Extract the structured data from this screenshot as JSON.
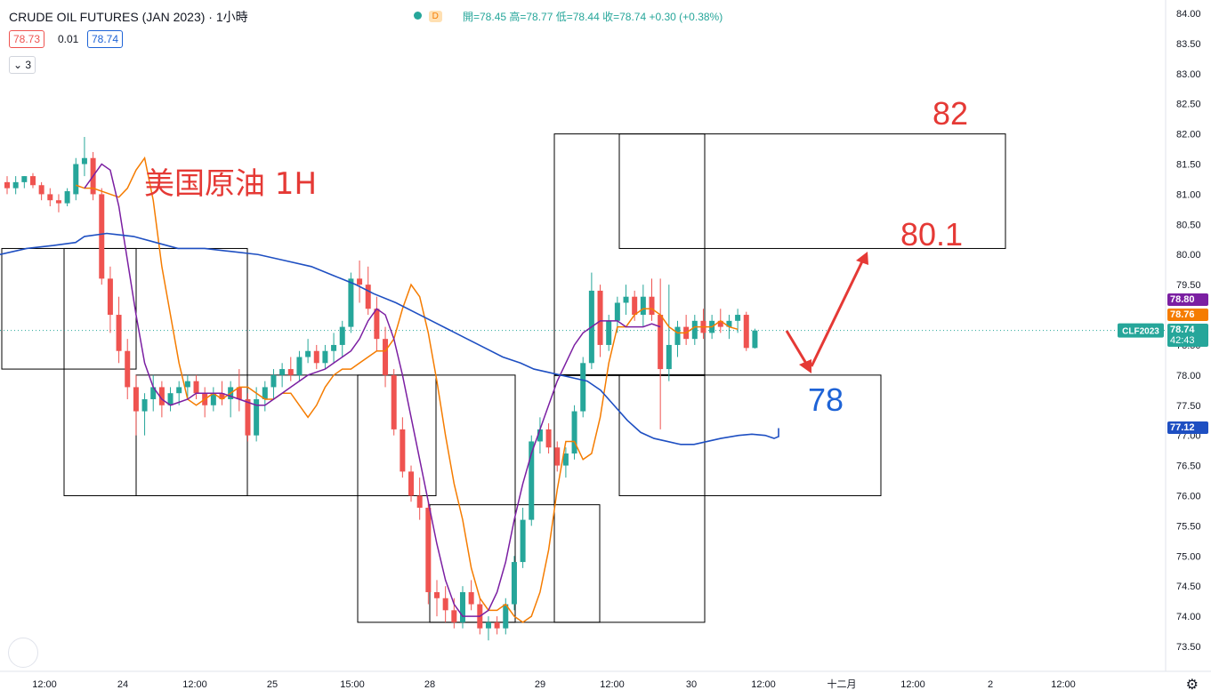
{
  "header": {
    "symbol_title": "CRUDE OIL FUTURES (JAN 2023) · 1小時",
    "status_icon_letter": "D",
    "ohlc": "開=78.45  高=78.77  低=78.44  收=78.74  +0.30 (+0.38%)",
    "bid": "78.73",
    "spread": "0.01",
    "ask": "78.74",
    "indicator_count": "3"
  },
  "colors": {
    "up": "#26a69a",
    "down": "#ef5350",
    "ma_fast": "#f57c00",
    "ma_mid": "#7b1fa2",
    "ma_slow": "#1e4fc2",
    "annotation_red": "#e53935",
    "annotation_blue": "#1e63d6"
  },
  "chart_data": {
    "type": "candlestick",
    "title": "美国原油 1H",
    "ylim": [
      73.2,
      84.1
    ],
    "y_ticks": [
      "84.00",
      "83.50",
      "83.00",
      "82.50",
      "82.00",
      "81.50",
      "81.00",
      "80.50",
      "80.00",
      "79.50",
      "79.00",
      "78.50",
      "78.00",
      "77.50",
      "77.00",
      "76.50",
      "76.00",
      "75.50",
      "75.00",
      "74.50",
      "74.00",
      "73.50"
    ],
    "x_ticks": [
      "12:00",
      "24",
      "12:00",
      "25",
      "15:00",
      "28",
      "29",
      "12:00",
      "30",
      "12:00",
      "十二月",
      "12:00",
      "2",
      "12:00"
    ],
    "last_price": 78.74,
    "price_labels": [
      {
        "label": "78.80",
        "value": 78.8,
        "color": "#7b1fa2"
      },
      {
        "label": "78.76",
        "value": 78.76,
        "color": "#f57c00"
      },
      {
        "label": "78.74",
        "sub": "42:43",
        "value": 78.74,
        "color": "#26a69a"
      },
      {
        "label": "77.12",
        "value": 77.12,
        "color": "#1e4fc2"
      }
    ],
    "symbol_tag": "CLF2023",
    "candles": [
      [
        81.2,
        81.3,
        81.0,
        81.1
      ],
      [
        81.1,
        81.3,
        81.0,
        81.2
      ],
      [
        81.2,
        81.3,
        81.1,
        81.3
      ],
      [
        81.3,
        81.35,
        81.1,
        81.15
      ],
      [
        81.15,
        81.2,
        80.9,
        81.0
      ],
      [
        81.0,
        81.1,
        80.8,
        80.9
      ],
      [
        80.9,
        81.0,
        80.7,
        80.85
      ],
      [
        80.85,
        81.1,
        80.8,
        81.05
      ],
      [
        81.0,
        81.6,
        80.9,
        81.5
      ],
      [
        81.5,
        81.95,
        81.3,
        81.6
      ],
      [
        81.6,
        81.7,
        80.9,
        81.0
      ],
      [
        81.0,
        81.1,
        79.5,
        79.6
      ],
      [
        79.6,
        79.8,
        78.7,
        79.0
      ],
      [
        79.0,
        79.3,
        78.2,
        78.4
      ],
      [
        78.4,
        78.6,
        77.6,
        77.8
      ],
      [
        77.8,
        78.0,
        77.0,
        77.4
      ],
      [
        77.4,
        77.7,
        77.0,
        77.6
      ],
      [
        77.6,
        78.0,
        77.4,
        77.8
      ],
      [
        77.8,
        77.9,
        77.3,
        77.5
      ],
      [
        77.5,
        77.8,
        77.4,
        77.7
      ],
      [
        77.7,
        77.9,
        77.5,
        77.8
      ],
      [
        77.8,
        78.0,
        77.6,
        77.9
      ],
      [
        77.9,
        78.0,
        77.6,
        77.7
      ],
      [
        77.7,
        77.8,
        77.3,
        77.5
      ],
      [
        77.5,
        77.8,
        77.4,
        77.7
      ],
      [
        77.7,
        77.9,
        77.5,
        77.6
      ],
      [
        77.6,
        77.9,
        77.3,
        77.8
      ],
      [
        77.8,
        78.1,
        77.4,
        77.6
      ],
      [
        77.6,
        77.7,
        76.9,
        77.0
      ],
      [
        77.0,
        77.8,
        76.9,
        77.6
      ],
      [
        77.6,
        77.9,
        77.4,
        77.8
      ],
      [
        77.8,
        78.1,
        77.6,
        78.0
      ],
      [
        78.0,
        78.2,
        77.8,
        78.1
      ],
      [
        78.1,
        78.3,
        77.9,
        78.0
      ],
      [
        78.0,
        78.4,
        77.9,
        78.3
      ],
      [
        78.3,
        78.6,
        78.2,
        78.4
      ],
      [
        78.4,
        78.5,
        78.1,
        78.2
      ],
      [
        78.2,
        78.5,
        78.1,
        78.4
      ],
      [
        78.4,
        78.7,
        78.2,
        78.5
      ],
      [
        78.5,
        78.9,
        78.3,
        78.8
      ],
      [
        78.8,
        79.7,
        78.7,
        79.6
      ],
      [
        79.6,
        79.9,
        79.2,
        79.5
      ],
      [
        79.5,
        79.8,
        79.0,
        79.1
      ],
      [
        79.1,
        79.3,
        78.4,
        78.6
      ],
      [
        78.6,
        78.8,
        77.8,
        78.0
      ],
      [
        78.0,
        78.1,
        77.0,
        77.1
      ],
      [
        77.1,
        77.3,
        76.3,
        76.4
      ],
      [
        76.4,
        76.5,
        75.9,
        76.0
      ],
      [
        76.0,
        76.3,
        75.6,
        75.8
      ],
      [
        75.8,
        75.9,
        74.2,
        74.4
      ],
      [
        74.4,
        74.6,
        74.0,
        74.3
      ],
      [
        74.3,
        74.5,
        73.9,
        74.1
      ],
      [
        74.1,
        74.3,
        73.8,
        73.9
      ],
      [
        73.9,
        74.5,
        73.8,
        74.4
      ],
      [
        74.4,
        74.6,
        74.1,
        74.2
      ],
      [
        74.2,
        74.3,
        73.7,
        73.8
      ],
      [
        73.8,
        74.0,
        73.6,
        73.9
      ],
      [
        73.9,
        74.0,
        73.7,
        73.8
      ],
      [
        73.8,
        74.3,
        73.7,
        74.2
      ],
      [
        74.2,
        75.0,
        74.1,
        74.9
      ],
      [
        74.9,
        75.8,
        74.8,
        75.6
      ],
      [
        75.6,
        77.0,
        75.5,
        76.9
      ],
      [
        76.9,
        77.3,
        76.7,
        77.1
      ],
      [
        77.1,
        77.2,
        76.7,
        76.8
      ],
      [
        76.8,
        76.9,
        76.4,
        76.5
      ],
      [
        76.5,
        76.8,
        76.3,
        76.7
      ],
      [
        76.7,
        77.5,
        76.6,
        77.4
      ],
      [
        77.4,
        78.3,
        77.3,
        78.2
      ],
      [
        78.2,
        79.7,
        78.1,
        79.4
      ],
      [
        79.4,
        79.5,
        78.3,
        78.5
      ],
      [
        78.5,
        79.0,
        78.4,
        78.9
      ],
      [
        78.9,
        79.3,
        78.7,
        79.2
      ],
      [
        79.2,
        79.5,
        79.0,
        79.3
      ],
      [
        79.3,
        79.4,
        78.9,
        79.0
      ],
      [
        79.0,
        79.5,
        78.8,
        79.3
      ],
      [
        79.3,
        79.6,
        78.9,
        79.0
      ],
      [
        79.0,
        79.6,
        77.1,
        78.1
      ],
      [
        78.1,
        79.5,
        77.9,
        78.5
      ],
      [
        78.5,
        78.9,
        78.3,
        78.8
      ],
      [
        78.8,
        79.0,
        78.5,
        78.6
      ],
      [
        78.6,
        79.0,
        78.5,
        78.9
      ],
      [
        78.9,
        79.1,
        78.6,
        78.7
      ],
      [
        78.7,
        79.0,
        78.6,
        78.9
      ],
      [
        78.9,
        79.1,
        78.7,
        78.8
      ],
      [
        78.8,
        79.0,
        78.6,
        78.9
      ],
      [
        78.9,
        79.1,
        78.7,
        79.0
      ],
      [
        79.0,
        79.05,
        78.4,
        78.45
      ],
      [
        78.45,
        78.77,
        78.44,
        78.74
      ]
    ],
    "ma_fast": [
      81.15,
      81.1,
      81.1,
      81.05,
      81.0,
      80.95,
      81.1,
      81.4,
      81.6,
      80.9,
      79.8,
      79.0,
      78.2,
      77.6,
      77.5,
      77.6,
      77.7,
      77.6,
      77.7,
      77.8,
      77.8,
      77.7,
      77.6,
      77.6,
      77.7,
      77.7,
      77.5,
      77.3,
      77.5,
      77.8,
      78.0,
      78.1,
      78.1,
      78.2,
      78.3,
      78.4,
      78.4,
      78.6,
      79.1,
      79.5,
      79.3,
      78.7,
      77.9,
      77.0,
      76.2,
      75.6,
      74.8,
      74.3,
      74.1,
      74.1,
      74.2,
      74.0,
      73.9,
      74.0,
      74.4,
      75.1,
      76.1,
      76.9,
      76.9,
      76.6,
      76.7,
      77.3,
      78.2,
      78.8,
      78.8,
      79.0,
      79.1,
      79.1,
      79.0,
      78.8,
      78.7,
      78.7,
      78.8,
      78.8,
      78.8,
      78.9,
      78.8,
      78.76
    ],
    "ma_fast_start": 8,
    "ma_mid": [
      81.1,
      81.3,
      81.5,
      81.4,
      80.8,
      79.9,
      79.0,
      78.2,
      77.8,
      77.6,
      77.5,
      77.55,
      77.6,
      77.7,
      77.7,
      77.7,
      77.7,
      77.65,
      77.6,
      77.55,
      77.5,
      77.5,
      77.6,
      77.7,
      77.8,
      77.9,
      78.0,
      78.05,
      78.1,
      78.2,
      78.3,
      78.4,
      78.6,
      78.9,
      79.1,
      79.0,
      78.6,
      78.0,
      77.3,
      76.6,
      75.9,
      75.2,
      74.6,
      74.2,
      74.0,
      74.0,
      74.0,
      74.1,
      74.4,
      74.9,
      75.6,
      76.2,
      76.7,
      77.1,
      77.5,
      77.9,
      78.2,
      78.5,
      78.7,
      78.8,
      78.9,
      78.9,
      78.9,
      78.8,
      78.8,
      78.8,
      78.85,
      78.8
    ],
    "ma_mid_start": 9,
    "ma_slow": [
      80.0,
      80.1,
      80.15,
      80.2,
      80.3,
      80.35,
      80.3,
      80.2,
      80.1,
      80.1,
      80.05,
      80.0,
      79.9,
      79.8,
      79.65,
      79.5,
      79.35,
      79.2,
      79.05,
      78.9,
      78.75,
      78.6,
      78.45,
      78.3,
      78.2,
      78.1,
      78.05,
      78.0,
      77.95,
      77.9,
      77.75,
      77.5,
      77.25,
      77.05,
      76.95,
      76.9,
      76.85,
      76.85,
      76.9,
      76.95,
      77.0,
      77.02,
      77.0,
      76.95,
      76.98,
      77.12
    ],
    "ma_slow_pos": [
      0,
      30,
      60,
      85,
      95,
      120,
      150,
      175,
      200,
      230,
      260,
      290,
      320,
      350,
      375,
      400,
      420,
      445,
      465,
      485,
      505,
      525,
      545,
      565,
      585,
      600,
      615,
      630,
      645,
      660,
      675,
      690,
      705,
      720,
      735,
      750,
      765,
      780,
      795,
      810,
      830,
      845,
      860,
      870,
      875,
      875
    ],
    "zones": [
      {
        "name": "zone-a",
        "y1": 80.1,
        "y2": 78.1
      },
      {
        "name": "zone-b",
        "y1": 80.1,
        "y2": 76.0
      },
      {
        "name": "zone-c",
        "y1": 78.0,
        "y2": 76.0
      },
      {
        "name": "zone-d",
        "y1": 78.0,
        "y2": 73.9
      },
      {
        "name": "zone-e",
        "y1": 75.85,
        "y2": 73.9
      },
      {
        "name": "zone-f",
        "y1": 82.0,
        "y2": 73.9
      },
      {
        "name": "zone-g",
        "y1": 82.0,
        "y2": 80.1
      },
      {
        "name": "zone-h",
        "y1": 78.0,
        "y2": 76.0
      }
    ],
    "annotations": {
      "target_high": "82",
      "target_mid": "80.1",
      "support": "78"
    }
  }
}
